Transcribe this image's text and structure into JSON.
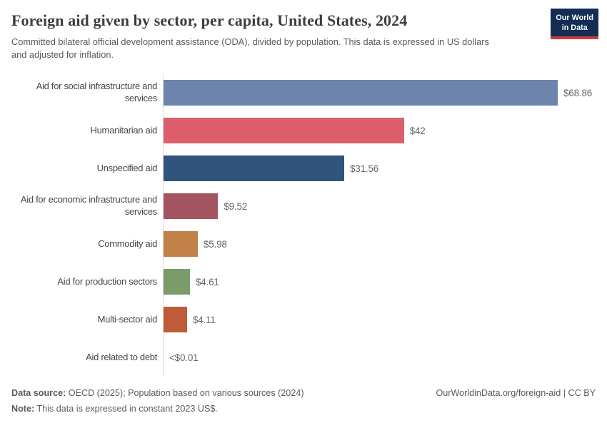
{
  "header": {
    "title": "Foreign aid given by sector, per capita, United States, 2024",
    "subtitle": "Committed bilateral official development assistance (ODA), divided by population. This data is expressed in US dollars and adjusted for inflation.",
    "logo": {
      "line1": "Our World",
      "line2": "in Data",
      "bg_color": "#132d55",
      "accent_color": "#d13b3b"
    }
  },
  "chart_data": {
    "type": "bar",
    "orientation": "horizontal",
    "title": "Foreign aid given by sector, per capita, United States, 2024",
    "categories": [
      "Aid for social infrastructure and\nservices",
      "Humanitarian aid",
      "Unspecified aid",
      "Aid for economic infrastructure and\nservices",
      "Commodity aid",
      "Aid for production sectors",
      "Multi-sector aid",
      "Aid related to debt"
    ],
    "values": [
      68.86,
      42,
      31.56,
      9.52,
      5.98,
      4.61,
      4.11,
      0.005
    ],
    "value_labels": [
      "$68.86",
      "$42",
      "$31.56",
      "$9.52",
      "$5.98",
      "$4.61",
      "$4.11",
      "<$0.01"
    ],
    "bar_colors": [
      "#6d84ac",
      "#dd5f6c",
      "#31547d",
      "#a2555f",
      "#c28146",
      "#799c6a",
      "#c05b3a",
      "#cccccc"
    ],
    "xlim": [
      0,
      75
    ],
    "grid": false,
    "legend": false,
    "axis_line_color": "#dcdcdc"
  },
  "footer": {
    "datasource_label": "Data source:",
    "datasource_text": "OECD (2025); Population based on various sources (2024)",
    "note_label": "Note:",
    "note_text": "This data is expressed in constant 2023 US$.",
    "link_text": "OurWorldinData.org/foreign-aid | CC BY"
  }
}
